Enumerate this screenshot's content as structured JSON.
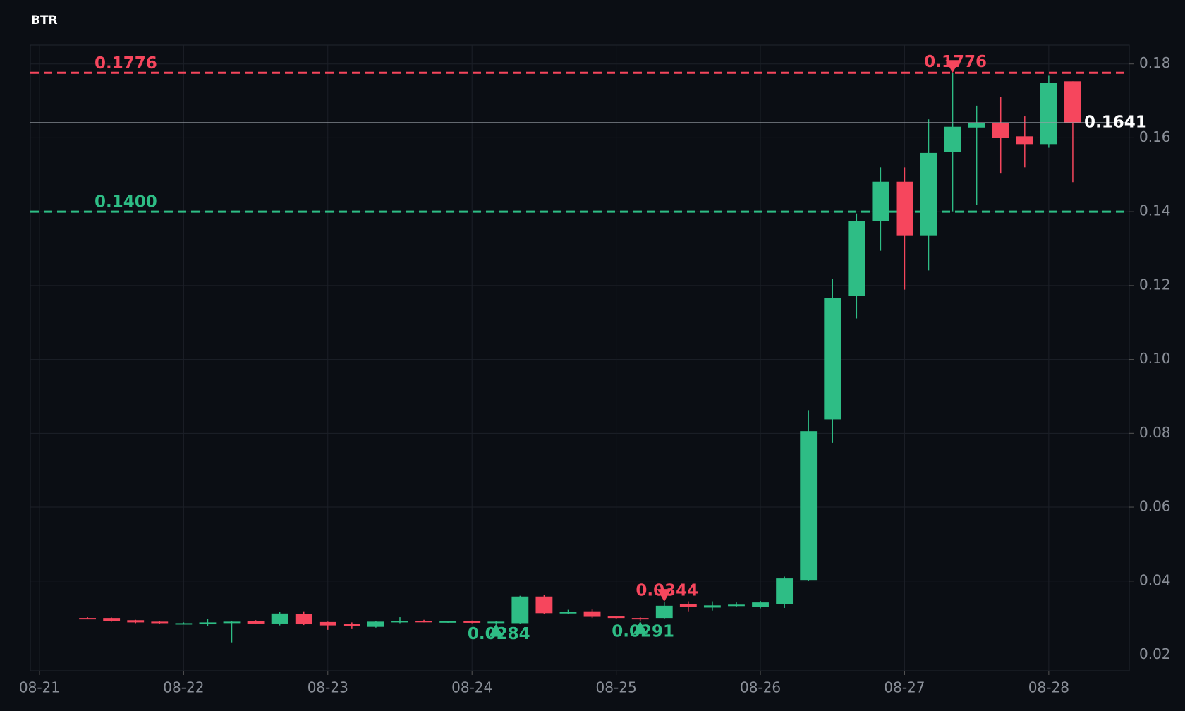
{
  "chart_data": {
    "type": "candlestick",
    "title": "BTR",
    "categories": [
      null,
      null,
      null,
      null,
      null,
      null,
      null,
      null,
      null,
      null,
      null,
      null,
      null,
      null,
      null,
      null,
      null,
      null,
      null,
      null,
      null,
      null,
      null,
      null,
      null,
      null,
      null,
      null,
      null,
      null,
      null,
      null,
      null,
      null,
      null,
      null,
      null,
      null,
      null,
      null,
      null,
      null
    ],
    "open": [
      0.03,
      0.03,
      0.0294,
      0.029,
      0.0284,
      0.0283,
      0.0288,
      0.0292,
      0.0285,
      0.0311,
      0.0289,
      0.0284,
      0.0276,
      0.0288,
      0.0292,
      0.0289,
      0.0292,
      0.0287,
      0.0286,
      0.0358,
      0.0313,
      0.0318,
      0.0304,
      0.03,
      0.03,
      0.0338,
      0.0328,
      0.0333,
      0.033,
      0.0337,
      0.0403,
      0.0838,
      0.1172,
      0.1374,
      0.1481,
      0.1336,
      0.1561,
      0.1628,
      0.164,
      0.1604,
      0.1583,
      0.1753
    ],
    "high": [
      0.0302,
      0.0301,
      0.0295,
      0.0291,
      0.0288,
      0.0298,
      0.0292,
      0.0294,
      0.0316,
      0.0318,
      0.029,
      0.0288,
      0.0292,
      0.0302,
      0.0295,
      0.0292,
      0.0293,
      0.0292,
      0.036,
      0.0362,
      0.0322,
      0.0323,
      0.0305,
      0.0302,
      0.0344,
      0.0345,
      0.0345,
      0.0342,
      0.0346,
      0.0412,
      0.0863,
      0.1217,
      0.1395,
      0.152,
      0.152,
      0.165,
      0.1776,
      0.1687,
      0.1711,
      0.1658,
      0.1768,
      0.1753
    ],
    "low": [
      0.0298,
      0.029,
      0.0286,
      0.0285,
      0.0283,
      0.0278,
      0.0234,
      0.0283,
      0.028,
      0.0281,
      0.0268,
      0.027,
      0.0274,
      0.0286,
      0.0288,
      0.0287,
      0.0286,
      0.0284,
      0.0285,
      0.031,
      0.031,
      0.03,
      0.0298,
      0.0291,
      0.0298,
      0.0318,
      0.032,
      0.033,
      0.0326,
      0.0327,
      0.0401,
      0.0774,
      0.1111,
      0.1294,
      0.1189,
      0.1241,
      0.1401,
      0.1418,
      0.1505,
      0.152,
      0.1573,
      0.148
    ],
    "close": [
      0.0299,
      0.0292,
      0.0288,
      0.0286,
      0.0286,
      0.0288,
      0.029,
      0.0285,
      0.0312,
      0.0283,
      0.028,
      0.0278,
      0.029,
      0.0292,
      0.0289,
      0.0291,
      0.0287,
      0.029,
      0.0358,
      0.0313,
      0.0316,
      0.0303,
      0.03,
      0.0298,
      0.0333,
      0.033,
      0.0334,
      0.0336,
      0.0342,
      0.0407,
      0.0806,
      0.1166,
      0.1374,
      0.1481,
      0.1336,
      0.1559,
      0.163,
      0.164,
      0.16,
      0.1583,
      0.1749,
      0.1641
    ],
    "up_color": "#2ebd85",
    "down_color": "#f6465d",
    "ylim": [
      0.0157,
      0.1851
    ],
    "yticks": [
      0.02,
      0.04,
      0.06,
      0.08,
      {
        "value": 0.1,
        "label": "0.10"
      },
      0.12,
      0.14,
      0.16,
      0.18
    ],
    "xlim": [
      -2.38,
      43.35
    ],
    "xticks": [
      {
        "value": -2,
        "label": "08-21"
      },
      {
        "value": 4,
        "label": "08-22"
      },
      {
        "value": 10,
        "label": "08-23"
      },
      {
        "value": 16,
        "label": "08-24"
      },
      {
        "value": 22,
        "label": "08-25"
      },
      {
        "value": 28,
        "label": "08-26"
      },
      {
        "value": 34,
        "label": "08-27"
      },
      {
        "value": 40,
        "label": "08-28"
      }
    ],
    "grid": true,
    "levels": [
      {
        "value": 0.1776,
        "color": "#f6465d"
      },
      {
        "value": {
          "value": 0.14,
          "label": "0.1400"
        },
        "color": "#2ebd85"
      }
    ],
    "last_price": 0.1641,
    "markers": [
      {
        "kind": "high",
        "value": 0.1776
      },
      {
        "kind": "low",
        "value": 0.0284
      },
      {
        "kind": "low",
        "value": 0.0291
      },
      {
        "kind": "high",
        "value": 0.0344
      }
    ]
  }
}
